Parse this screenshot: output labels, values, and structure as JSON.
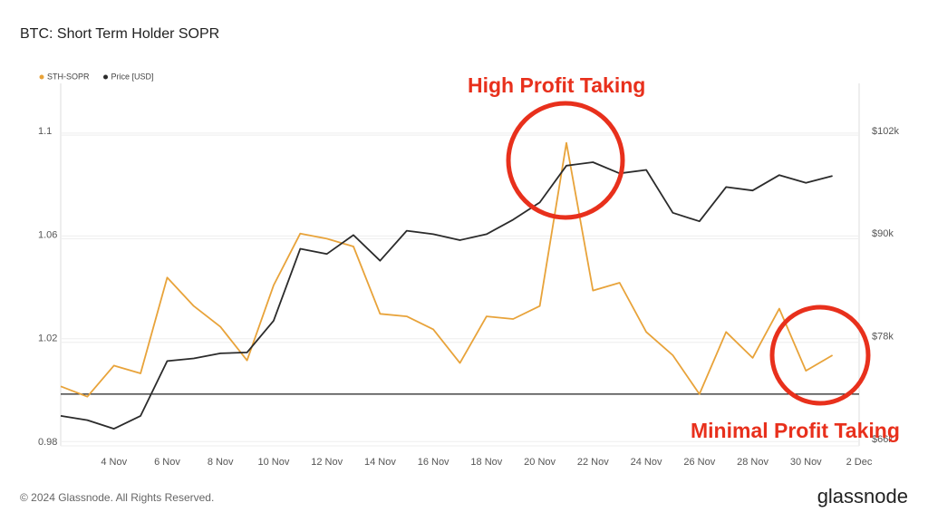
{
  "chart_data": {
    "type": "line",
    "title": "BTC: Short Term Holder SOPR",
    "categories": [
      null,
      null,
      "4 Nov",
      null,
      "6 Nov",
      null,
      "8 Nov",
      null,
      "10 Nov",
      null,
      "12 Nov",
      null,
      "14 Nov",
      null,
      "16 Nov",
      null,
      "18 Nov",
      null,
      "20 Nov",
      null,
      "22 Nov",
      null,
      "24 Nov",
      null,
      "26 Nov",
      null,
      "28 Nov",
      null,
      "30 Nov",
      null,
      "2 Dec"
    ],
    "series": [
      {
        "name": "STH-SOPR",
        "color": "#e8a33a",
        "values": [
          1.003,
          0.999,
          1.011,
          1.008,
          1.045,
          1.034,
          1.026,
          1.013,
          1.042,
          1.062,
          1.06,
          1.057,
          1.031,
          1.03,
          1.025,
          1.012,
          1.03,
          1.029,
          1.034,
          1.097,
          1.04,
          1.043,
          1.024,
          1.015,
          1.0,
          1.024,
          1.014,
          1.033,
          1.009,
          1.015,
          null
        ]
      },
      {
        "name": "Price [USD]",
        "color": "#2b2b2b",
        "axis": "y2",
        "values": [
          69000,
          68500,
          67500,
          69000,
          75400,
          75700,
          76300,
          76400,
          80100,
          88500,
          87900,
          90100,
          87100,
          90600,
          90200,
          89500,
          90200,
          91900,
          93900,
          98200,
          98600,
          97300,
          97700,
          92700,
          91700,
          95700,
          95300,
          97100,
          96200,
          97000,
          null
        ]
      }
    ],
    "ylim": [
      0.98,
      1.12
    ],
    "yticks": [
      0.98,
      1.02,
      1.06,
      1.1
    ],
    "y2lim": [
      65500,
      107800
    ],
    "y2ticks": [
      {
        "value": 66000,
        "label": "$66k"
      },
      {
        "value": 78000,
        "label": "$78k"
      },
      {
        "value": 90000,
        "label": "$90k"
      },
      {
        "value": 102000,
        "label": "$102k"
      }
    ],
    "reference_line": 1,
    "grid": true,
    "legend": "top-left",
    "annotations": [
      "High Profit Taking",
      "Minimal Profit Taking"
    ],
    "footer": "© 2024 Glassnode. All Rights Reserved.",
    "brand": "glassnode"
  }
}
